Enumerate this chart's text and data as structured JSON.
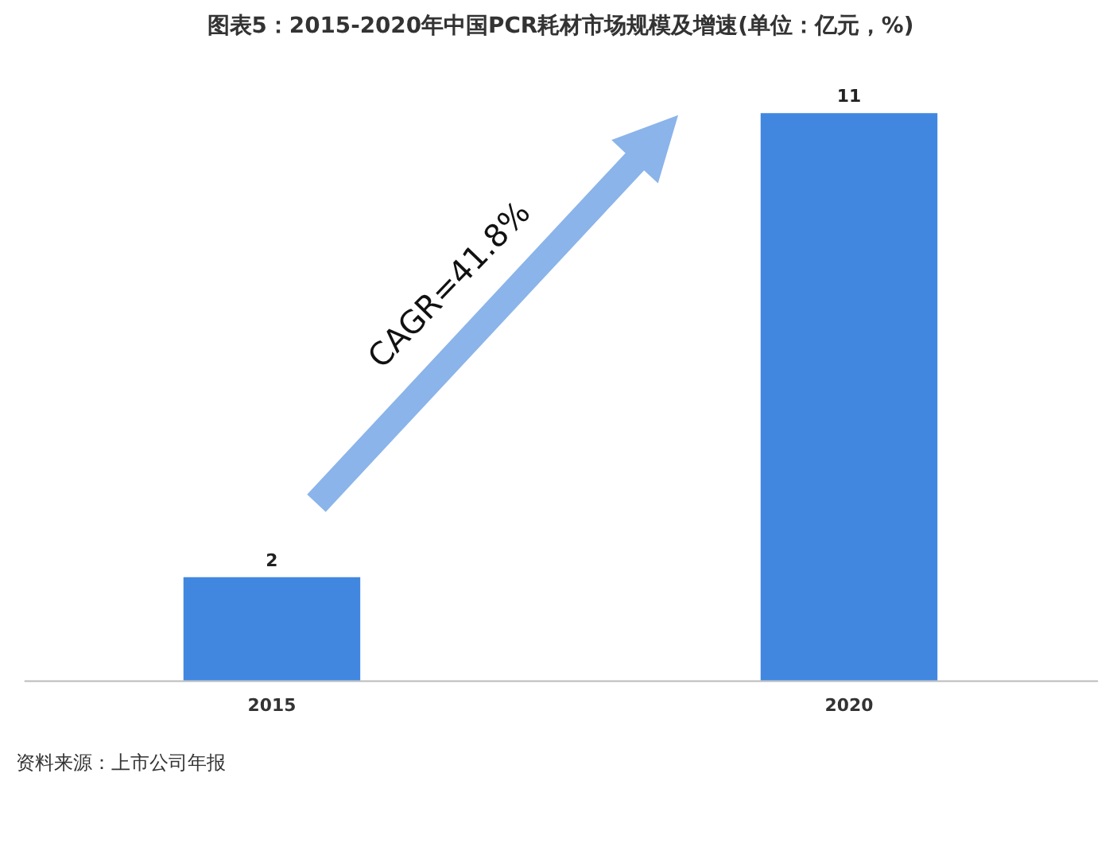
{
  "chart_data": {
    "type": "bar",
    "title": "图表5：2015-2020年中国PCR耗材市场规模及增速(单位：亿元，%)",
    "categories": [
      "2015",
      "2020"
    ],
    "values": [
      2,
      11
    ],
    "color": "#4187e0",
    "data_labels": true,
    "annotations": [
      "CAGR=41.8%",
      "资料来源：上市公司年报"
    ]
  }
}
